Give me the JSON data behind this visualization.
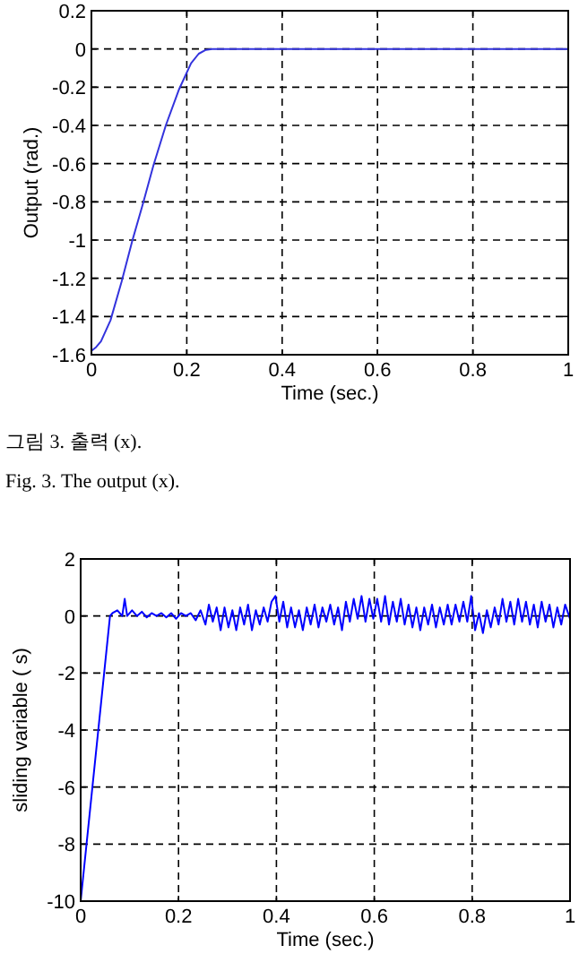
{
  "chart_data": [
    {
      "type": "line",
      "xlabel": "Time (sec.)",
      "ylabel": "Output (rad.)",
      "xlim": [
        0,
        1
      ],
      "ylim": [
        -1.6,
        0.2
      ],
      "xticks": [
        0,
        0.2,
        0.4,
        0.6,
        0.8,
        1
      ],
      "yticks": [
        -1.6,
        -1.4,
        -1.2,
        -1,
        -0.8,
        -0.6,
        -0.4,
        -0.2,
        0,
        0.2
      ],
      "grid": true,
      "series": [
        {
          "color": "#3333dd",
          "x": [
            0,
            0.01,
            0.02,
            0.04,
            0.063,
            0.085,
            0.108,
            0.13,
            0.156,
            0.184,
            0.209,
            0.225,
            0.24,
            0.253,
            1
          ],
          "values": [
            -1.58,
            -1.56,
            -1.53,
            -1.42,
            -1.22,
            -1.01,
            -0.81,
            -0.61,
            -0.4,
            -0.21,
            -0.075,
            -0.025,
            -0.005,
            0,
            0
          ]
        }
      ],
      "annotations": [
        "그림 3. 출력 (x).",
        "Fig. 3. The output (x)."
      ]
    },
    {
      "type": "line",
      "xlabel": "Time (sec.)",
      "ylabel": "sliding variable ( s)",
      "xlim": [
        0,
        1
      ],
      "ylim": [
        -10,
        2
      ],
      "xticks": [
        0,
        0.2,
        0.4,
        0.6,
        0.8,
        1
      ],
      "yticks": [
        -10,
        -8,
        -6,
        -4,
        -2,
        0,
        2
      ],
      "grid": true,
      "series": [
        {
          "color": "#0000ff",
          "x": [
            0,
            0.06,
            0.065,
            0.075,
            0.085,
            0.09,
            0.095,
            0.105,
            0.115,
            0.125,
            0.135,
            0.145,
            0.155,
            0.165,
            0.175,
            0.185,
            0.195,
            0.205,
            0.215,
            0.225,
            0.235,
            0.245,
            0.255,
            0.262,
            0.27,
            0.278,
            0.286,
            0.294,
            0.302,
            0.31,
            0.318,
            0.326,
            0.334,
            0.342,
            0.35,
            0.358,
            0.366,
            0.374,
            0.382,
            0.39,
            0.398,
            0.406,
            0.414,
            0.422,
            0.43,
            0.438,
            0.446,
            0.454,
            0.462,
            0.47,
            0.478,
            0.486,
            0.494,
            0.502,
            0.51,
            0.518,
            0.526,
            0.534,
            0.542,
            0.55,
            0.558,
            0.566,
            0.574,
            0.582,
            0.59,
            0.598,
            0.606,
            0.614,
            0.622,
            0.63,
            0.638,
            0.646,
            0.654,
            0.662,
            0.67,
            0.678,
            0.686,
            0.694,
            0.702,
            0.71,
            0.718,
            0.726,
            0.734,
            0.742,
            0.75,
            0.758,
            0.766,
            0.774,
            0.782,
            0.79,
            0.798,
            0.806,
            0.814,
            0.822,
            0.83,
            0.838,
            0.846,
            0.854,
            0.862,
            0.87,
            0.878,
            0.886,
            0.894,
            0.902,
            0.91,
            0.918,
            0.926,
            0.934,
            0.942,
            0.95,
            0.958,
            0.966,
            0.974,
            0.982,
            0.99,
            1.0
          ],
          "values": [
            -10,
            0,
            0.1,
            0.2,
            0.0,
            0.6,
            0.0,
            0.2,
            0.0,
            0.15,
            -0.05,
            0.1,
            0.0,
            0.1,
            -0.05,
            0.1,
            -0.1,
            0.1,
            0.0,
            0.1,
            -0.15,
            0.2,
            -0.3,
            0.4,
            -0.2,
            0.3,
            -0.5,
            0.3,
            -0.4,
            0.2,
            -0.5,
            0.3,
            -0.3,
            0.4,
            -0.5,
            0.2,
            -0.3,
            0.3,
            -0.2,
            0.5,
            0.7,
            -0.2,
            0.5,
            -0.4,
            0.3,
            -0.4,
            0.2,
            -0.5,
            0.3,
            -0.3,
            0.4,
            -0.4,
            0.3,
            -0.2,
            0.4,
            -0.3,
            0.3,
            -0.5,
            0.5,
            -0.2,
            0.6,
            -0.1,
            0.7,
            -0.2,
            0.6,
            -0.1,
            0.6,
            -0.2,
            0.7,
            -0.3,
            0.5,
            -0.2,
            0.6,
            -0.3,
            0.4,
            -0.4,
            0.3,
            -0.5,
            0.3,
            -0.3,
            0.4,
            -0.4,
            0.3,
            -0.3,
            0.4,
            -0.3,
            0.4,
            -0.2,
            0.5,
            -0.2,
            0.7,
            -0.5,
            0.1,
            -0.6,
            0.2,
            -0.4,
            0.3,
            -0.3,
            0.6,
            -0.2,
            0.5,
            -0.3,
            0.6,
            -0.2,
            0.5,
            -0.3,
            0.4,
            -0.4,
            0.5,
            -0.2,
            0.4,
            -0.4,
            0.3,
            -0.3,
            0.4,
            -0.1
          ]
        }
      ]
    }
  ]
}
